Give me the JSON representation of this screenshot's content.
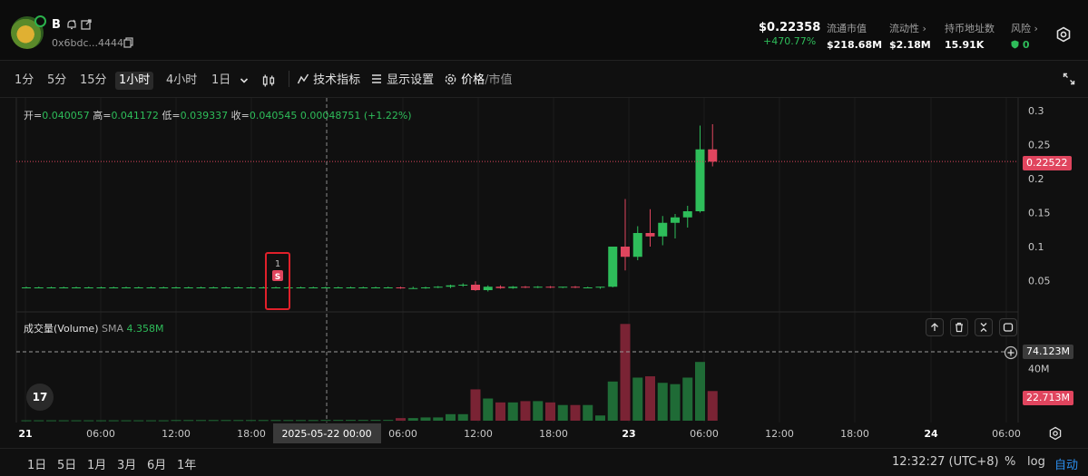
{
  "header": {
    "token_name": "B",
    "token_address": "0x6bdc...4444",
    "price": "$0.22358",
    "price_change": "+470.77%",
    "metrics": [
      {
        "label": "流通市值",
        "value": "$218.68M"
      },
      {
        "label": "流动性 ›",
        "value": "$2.18M"
      },
      {
        "label": "持币地址数",
        "value": "15.91K"
      },
      {
        "label": "风险 ›",
        "value": "0"
      }
    ]
  },
  "toolbar": {
    "timeframes": [
      "1分",
      "5分",
      "15分",
      "1小时",
      "4小时",
      "1日"
    ],
    "active_timeframe": "1小时",
    "indicators_label": "技术指标",
    "display_settings_label": "显示设置",
    "price_label": "价格",
    "market_cap_label": "市值"
  },
  "ohlc": {
    "open_label": "开=",
    "open": "0.040057",
    "high_label": "高=",
    "high": "0.041172",
    "low_label": "低=",
    "low": "0.039337",
    "close_label": "收=",
    "close": "0.040545",
    "change": "0.00048751 (+1.22%)"
  },
  "volume_legend": {
    "title": "成交量(Volume)",
    "sma_label": "SMA",
    "sma_value": "4.358M"
  },
  "price_axis": {
    "ticks": [
      "0.3",
      "0.25",
      "0.2",
      "0.15",
      "0.1",
      "0.05"
    ],
    "current_price_tag": "0.22522"
  },
  "volume_axis": {
    "ticks": [
      "40M"
    ],
    "crosshair_tag": "74.123M",
    "last_volume_tag": "22.713M"
  },
  "time_axis": {
    "labels": [
      "21",
      "06:00",
      "12:00",
      "18:00",
      "06:00",
      "12:00",
      "18:00",
      "23",
      "06:00",
      "12:00",
      "18:00",
      "24",
      "06:00"
    ],
    "crosshair_label": "2025-05-22   00:00"
  },
  "marker": {
    "count": "1",
    "letter": "S"
  },
  "tv_logo": "17",
  "bottom_bar": {
    "ranges": [
      "1日",
      "5日",
      "1月",
      "3月",
      "6月",
      "1年"
    ],
    "clock": "12:32:27 (UTC+8)",
    "percent": "%",
    "log": "log",
    "auto": "自动"
  },
  "colors": {
    "up": "#2ebd5a",
    "down": "#e0455e",
    "vol_up": "#1f6b36",
    "vol_down": "#7a2334",
    "current_price_line": "#e0455e"
  },
  "chart_data": {
    "type": "candlestick",
    "interval": "1h",
    "candles": [
      [
        0.04,
        0.041,
        0.039,
        0.04,
        0.3
      ],
      [
        0.04,
        0.041,
        0.039,
        0.04,
        0.3
      ],
      [
        0.04,
        0.041,
        0.039,
        0.04,
        0.3
      ],
      [
        0.04,
        0.041,
        0.039,
        0.04,
        0.3
      ],
      [
        0.04,
        0.041,
        0.039,
        0.04,
        0.3
      ],
      [
        0.04,
        0.041,
        0.039,
        0.04,
        0.3
      ],
      [
        0.04,
        0.041,
        0.039,
        0.04,
        0.3
      ],
      [
        0.04,
        0.041,
        0.039,
        0.04,
        0.3
      ],
      [
        0.04,
        0.041,
        0.039,
        0.04,
        0.3
      ],
      [
        0.04,
        0.041,
        0.039,
        0.04,
        0.3
      ],
      [
        0.04,
        0.041,
        0.039,
        0.04,
        0.3
      ],
      [
        0.04,
        0.041,
        0.039,
        0.04,
        0.3
      ],
      [
        0.04,
        0.041,
        0.039,
        0.04,
        0.5
      ],
      [
        0.04,
        0.041,
        0.039,
        0.04,
        0.5
      ],
      [
        0.04,
        0.041,
        0.039,
        0.04,
        0.5
      ],
      [
        0.04,
        0.041,
        0.039,
        0.04,
        0.5
      ],
      [
        0.04,
        0.041,
        0.039,
        0.04,
        0.5
      ],
      [
        0.04,
        0.041,
        0.039,
        0.04,
        0.5
      ],
      [
        0.04,
        0.041,
        0.039,
        0.04,
        0.5
      ],
      [
        0.04,
        0.041,
        0.039,
        0.04,
        0.5
      ],
      [
        0.04,
        0.041,
        0.039,
        0.04,
        0.5
      ],
      [
        0.04,
        0.041,
        0.039,
        0.04,
        0.5
      ],
      [
        0.04,
        0.041,
        0.039,
        0.04,
        0.5
      ],
      [
        0.04,
        0.041,
        0.039,
        0.04,
        0.5
      ],
      [
        0.04,
        0.041,
        0.039,
        0.04,
        0.6
      ],
      [
        0.04,
        0.041,
        0.039,
        0.04,
        0.6
      ],
      [
        0.04,
        0.041,
        0.039,
        0.04,
        0.6
      ],
      [
        0.04,
        0.041,
        0.039,
        0.04,
        0.6
      ],
      [
        0.04,
        0.041,
        0.039,
        0.04,
        0.6
      ],
      [
        0.04,
        0.041,
        0.039,
        0.04,
        0.6
      ],
      [
        0.04,
        0.041,
        0.038,
        0.039,
        2.0
      ],
      [
        0.039,
        0.041,
        0.038,
        0.039,
        2.0
      ],
      [
        0.039,
        0.041,
        0.038,
        0.04,
        2.5
      ],
      [
        0.04,
        0.042,
        0.039,
        0.041,
        2.5
      ],
      [
        0.041,
        0.044,
        0.039,
        0.043,
        5.0
      ],
      [
        0.043,
        0.046,
        0.041,
        0.044,
        5.0
      ],
      [
        0.044,
        0.049,
        0.035,
        0.036,
        24.0
      ],
      [
        0.036,
        0.043,
        0.034,
        0.041,
        17.0
      ],
      [
        0.041,
        0.043,
        0.038,
        0.039,
        14.0
      ],
      [
        0.039,
        0.042,
        0.038,
        0.041,
        14.0
      ],
      [
        0.041,
        0.042,
        0.039,
        0.04,
        15.0
      ],
      [
        0.04,
        0.042,
        0.039,
        0.041,
        15.0
      ],
      [
        0.041,
        0.042,
        0.039,
        0.04,
        14.0
      ],
      [
        0.04,
        0.041,
        0.039,
        0.041,
        12.0
      ],
      [
        0.041,
        0.042,
        0.039,
        0.04,
        12.0
      ],
      [
        0.04,
        0.041,
        0.039,
        0.04,
        12.0
      ],
      [
        0.04,
        0.041,
        0.038,
        0.041,
        4.0
      ],
      [
        0.041,
        0.1,
        0.04,
        0.1,
        30.0
      ],
      [
        0.1,
        0.17,
        0.065,
        0.085,
        74.1
      ],
      [
        0.085,
        0.13,
        0.08,
        0.12,
        33.0
      ],
      [
        0.12,
        0.155,
        0.1,
        0.115,
        34.0
      ],
      [
        0.115,
        0.145,
        0.102,
        0.135,
        29.0
      ],
      [
        0.135,
        0.148,
        0.112,
        0.143,
        28.0
      ],
      [
        0.143,
        0.16,
        0.128,
        0.152,
        33.0
      ],
      [
        0.152,
        0.278,
        0.15,
        0.243,
        45.0
      ],
      [
        0.243,
        0.28,
        0.218,
        0.225,
        22.7
      ]
    ],
    "y_range": [
      0.0,
      0.3
    ],
    "volume_axis_tick": 40,
    "current_price": 0.22522
  }
}
